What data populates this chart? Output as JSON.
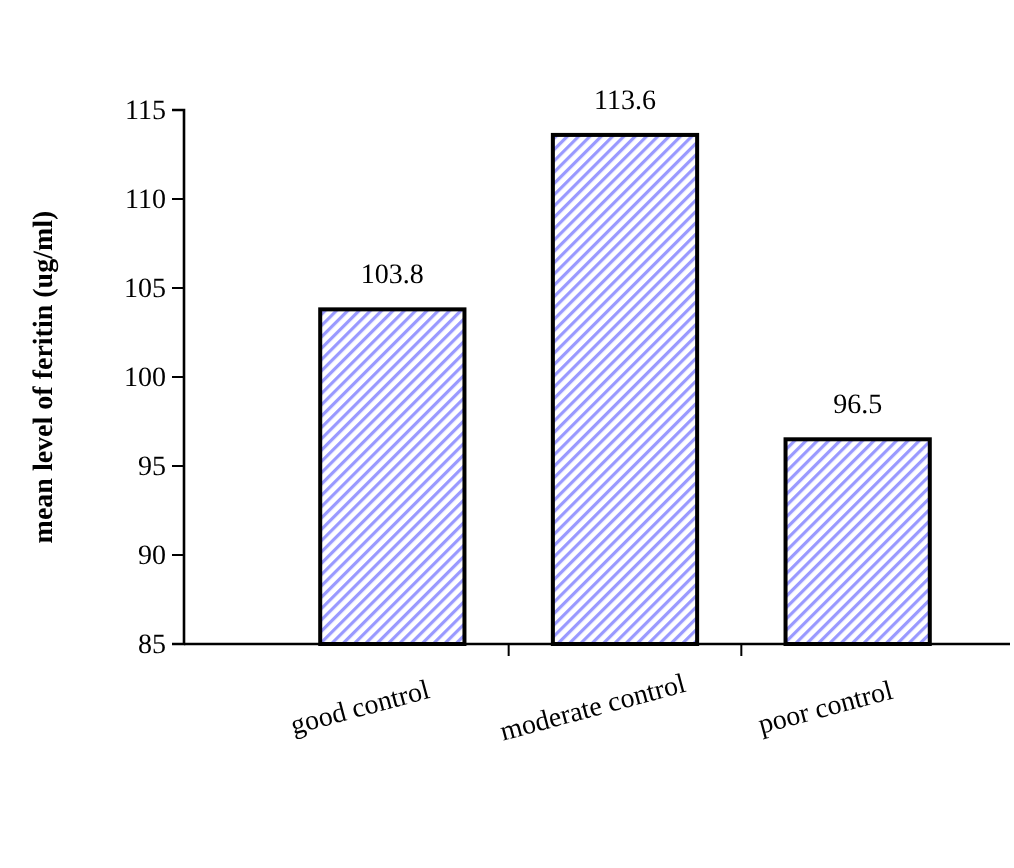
{
  "chart_data": {
    "type": "bar",
    "ylabel": "mean level of feritin (ug/ml)",
    "categories": [
      "good control",
      "moderate control",
      "poor control"
    ],
    "values": [
      103.8,
      113.6,
      96.5
    ],
    "color": "#9999ff",
    "ylim": [
      85,
      115
    ],
    "yticks": [
      85,
      90,
      95,
      100,
      105,
      110,
      115
    ],
    "data_labels": true,
    "grid": false
  }
}
